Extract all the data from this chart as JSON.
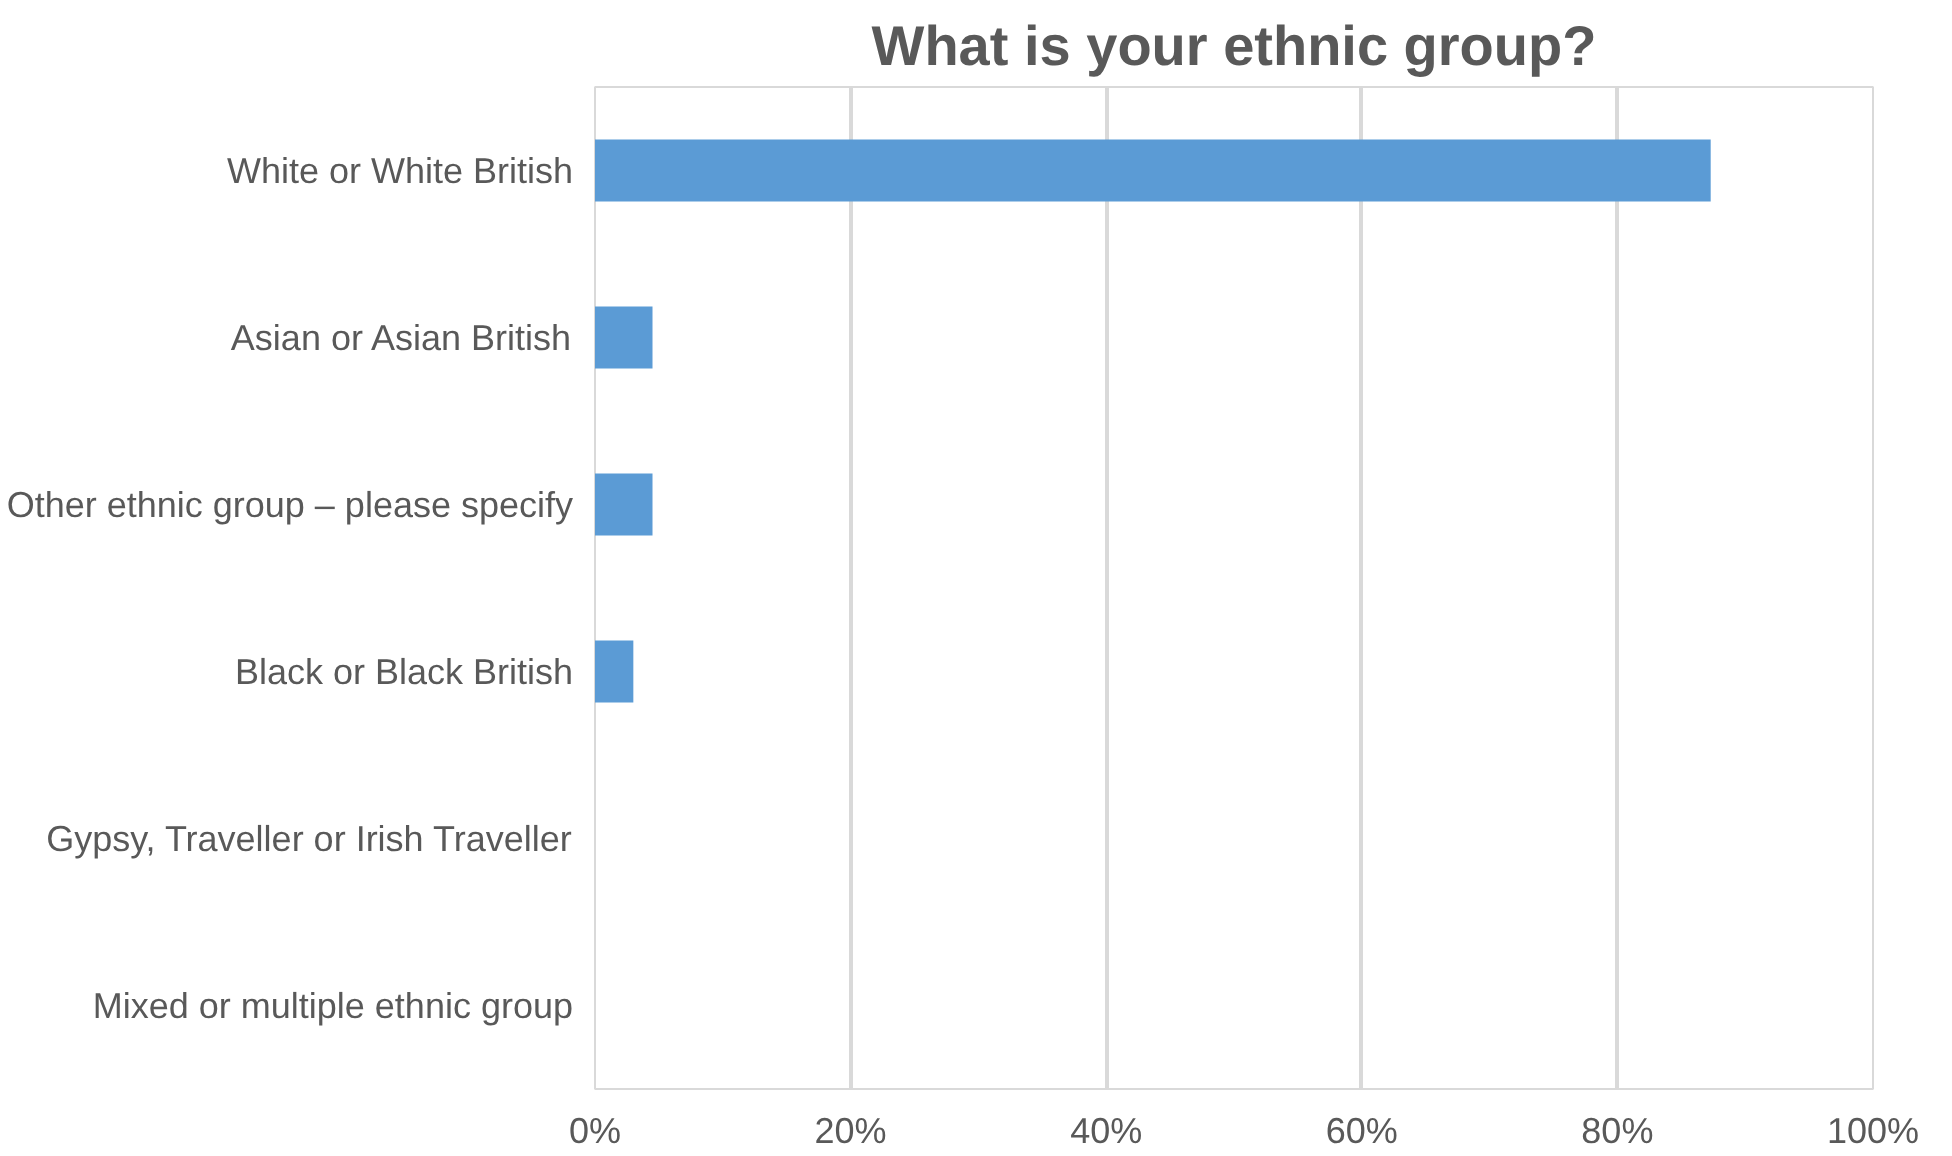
{
  "chart_data": {
    "type": "bar",
    "orientation": "horizontal",
    "title": "What is your ethnic group?",
    "categories": [
      "White or White British",
      "Asian or Asian British",
      "Other ethnic group – please specify",
      "Black or Black British",
      "Gypsy, Traveller or Irish Traveller",
      "Mixed or multiple ethnic group"
    ],
    "values": [
      87.3,
      4.5,
      4.5,
      3.0,
      0,
      0
    ],
    "color": "#5b9bd5",
    "xlim": [
      0,
      100
    ],
    "xticks": [
      {
        "value": 0,
        "label": "0%"
      },
      {
        "value": 20,
        "label": "20%"
      },
      {
        "value": 40,
        "label": "40%"
      },
      {
        "value": 60,
        "label": "60%"
      },
      {
        "value": 80,
        "label": "80%"
      },
      {
        "value": 100,
        "label": "100%"
      }
    ],
    "grid": "x"
  }
}
